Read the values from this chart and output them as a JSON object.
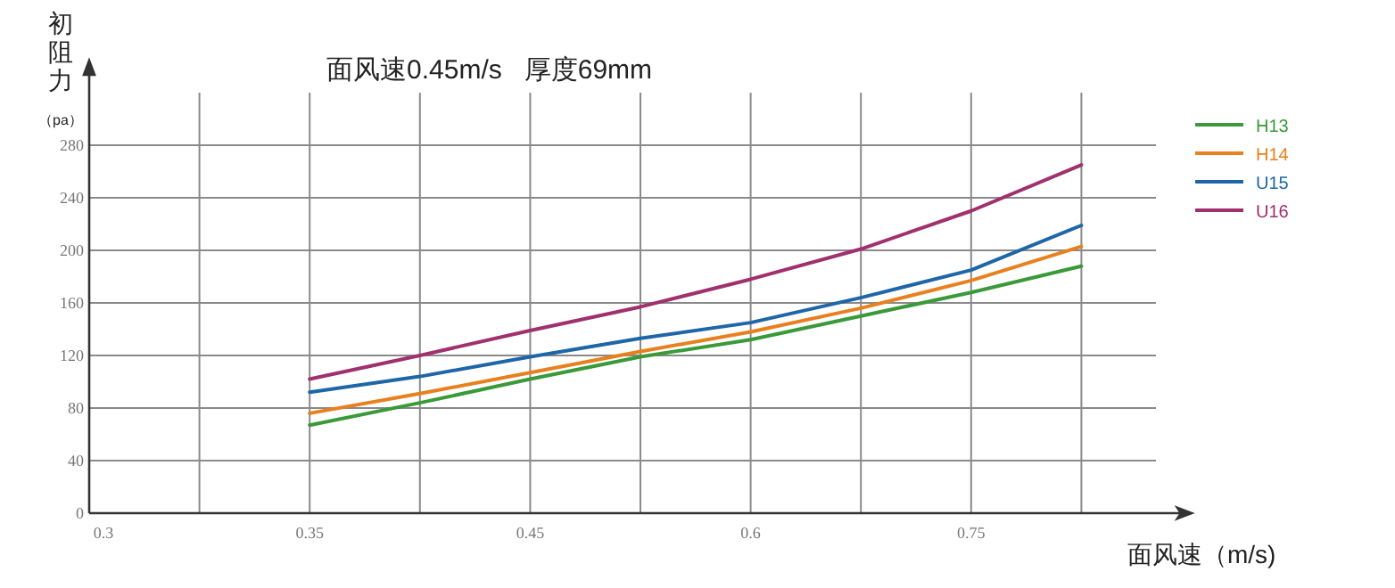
{
  "chart_data": {
    "type": "line",
    "title": "面风速0.45m/s   厚度69mm",
    "xlabel": "面风速（m/s)",
    "ylabel": "初阻力（pa）",
    "categories": [
      "0.3",
      null,
      "0.35",
      null,
      "0.45",
      null,
      "0.6",
      null,
      "0.75",
      null
    ],
    "ylim": [
      0,
      320
    ],
    "yticks": [
      0,
      40,
      80,
      120,
      160,
      200,
      240,
      280
    ],
    "grid": true,
    "legend": "top right",
    "marker": "none",
    "line_style": "solid",
    "series": [
      {
        "name": "H13",
        "color": "#3a9a3a",
        "values": [
          null,
          null,
          67,
          84,
          102,
          119,
          132,
          150,
          168,
          188
        ]
      },
      {
        "name": "H14",
        "color": "#e8801f",
        "values": [
          null,
          null,
          76,
          91,
          107,
          123,
          138,
          156,
          177,
          203
        ]
      },
      {
        "name": "U15",
        "color": "#1f66a8",
        "values": [
          null,
          null,
          92,
          104,
          119,
          133,
          145,
          164,
          185,
          219
        ]
      },
      {
        "name": "U16",
        "color": "#a0306e",
        "values": [
          null,
          null,
          102,
          120,
          139,
          157,
          178,
          201,
          230,
          265
        ]
      }
    ]
  }
}
